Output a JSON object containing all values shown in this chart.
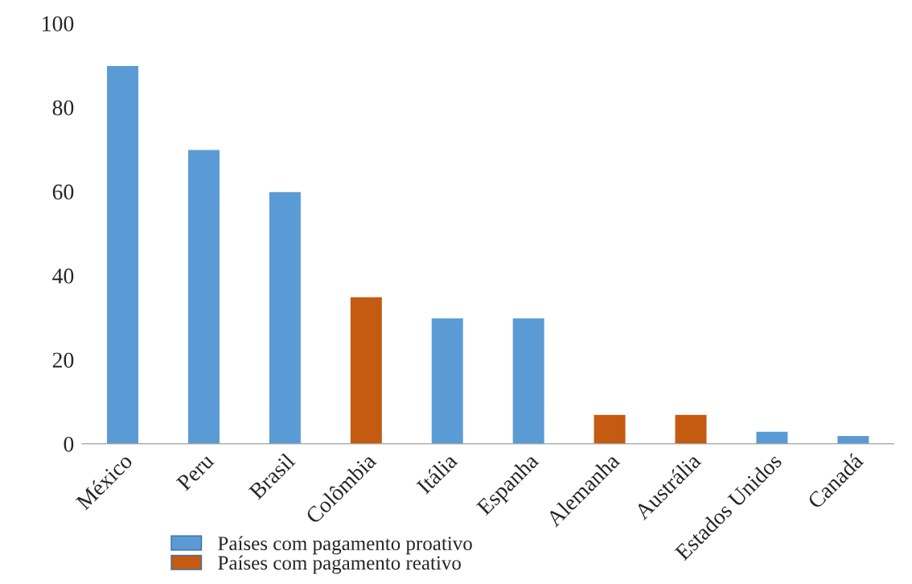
{
  "chart_data": {
    "type": "bar",
    "categories": [
      "México",
      "Peru",
      "Brasil",
      "Colômbia",
      "Itália",
      "Espanha",
      "Alemanha",
      "Austrália",
      "Estados Unidos",
      "Canadá"
    ],
    "series": [
      {
        "name": "Países com pagamento proativo",
        "color": "#5b9bd5",
        "values": [
          90,
          70,
          60,
          null,
          30,
          30,
          null,
          null,
          3,
          2
        ]
      },
      {
        "name": "Países com pagamento reativo",
        "color": "#c55a11",
        "values": [
          null,
          null,
          null,
          35,
          null,
          null,
          7,
          7,
          null,
          null
        ]
      }
    ],
    "ylim": [
      0,
      100
    ],
    "yticks": [
      0,
      20,
      40,
      60,
      80,
      100
    ],
    "grid": false,
    "legend": "bottom"
  }
}
